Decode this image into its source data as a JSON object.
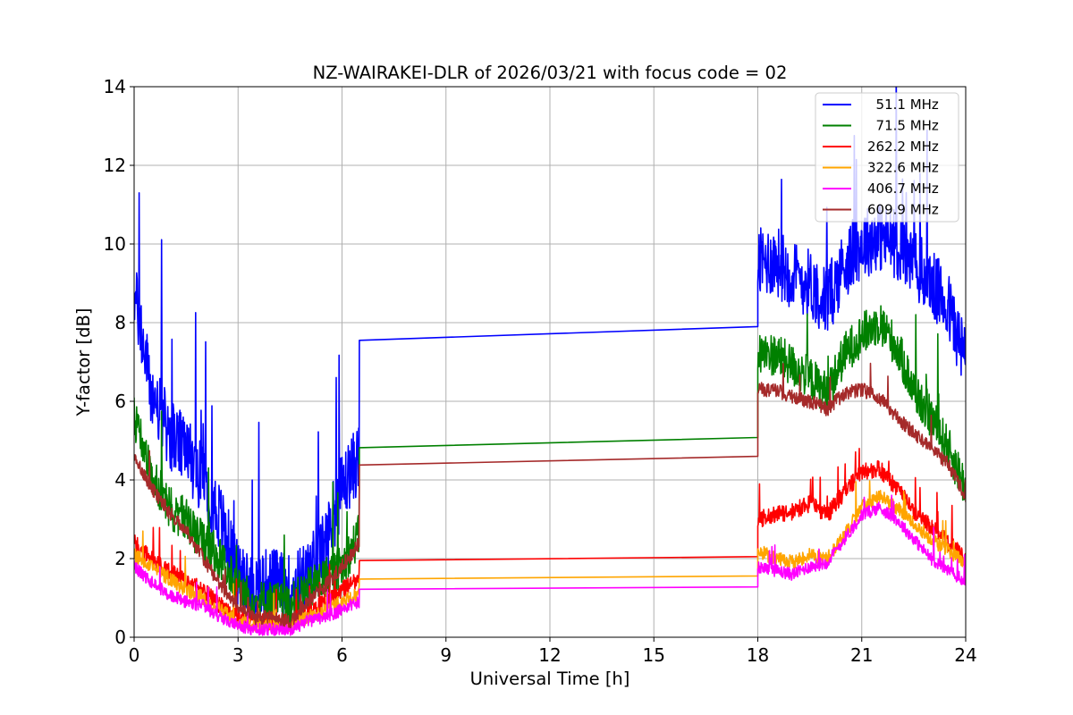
{
  "chart_data": {
    "type": "line",
    "title": "NZ-WAIRAKEI-DLR of 2026/03/21 with focus code = 02",
    "xlabel": "Universal Time [h]",
    "ylabel": "Y-factor [dB]",
    "xlim": [
      0,
      24
    ],
    "ylim": [
      0,
      14
    ],
    "xticks": [
      0,
      3,
      6,
      9,
      12,
      15,
      18,
      21,
      24
    ],
    "xtick_labels": [
      "0",
      "3",
      "6",
      "9",
      "12",
      "15",
      "18",
      "21",
      "24"
    ],
    "yticks": [
      0,
      2,
      4,
      6,
      8,
      10,
      12,
      14
    ],
    "ytick_labels": [
      "0",
      "2",
      "4",
      "6",
      "8",
      "10",
      "12",
      "14"
    ],
    "grid": true,
    "legend_position": "top-right",
    "gap": {
      "start": 6.5,
      "end": 18.0
    },
    "series": [
      {
        "name": "  51.1 MHz",
        "color": "#0000ff",
        "baseline": [
          [
            0,
            8.8
          ],
          [
            0.5,
            6.2
          ],
          [
            1.0,
            5.2
          ],
          [
            1.5,
            4.7
          ],
          [
            2.0,
            4.0
          ],
          [
            2.5,
            3.0
          ],
          [
            3.0,
            1.6
          ],
          [
            3.5,
            1.3
          ],
          [
            4.0,
            1.4
          ],
          [
            4.5,
            1.2
          ],
          [
            5.0,
            1.6
          ],
          [
            5.5,
            2.3
          ],
          [
            6.0,
            3.8
          ],
          [
            6.5,
            4.6
          ],
          [
            18.0,
            9.5
          ],
          [
            18.5,
            9.6
          ],
          [
            19.0,
            9.2
          ],
          [
            19.5,
            9.0
          ],
          [
            20.0,
            8.5
          ],
          [
            20.5,
            9.5
          ],
          [
            21.0,
            10.0
          ],
          [
            21.5,
            10.2
          ],
          [
            22.0,
            10.0
          ],
          [
            22.5,
            9.5
          ],
          [
            23.0,
            9.0
          ],
          [
            23.5,
            8.4
          ],
          [
            24.0,
            7.0
          ]
        ],
        "noise": 0.9,
        "gap_line": [
          7.55,
          7.9
        ]
      },
      {
        "name": "  71.5 MHz",
        "color": "#008000",
        "baseline": [
          [
            0,
            5.6
          ],
          [
            0.5,
            4.2
          ],
          [
            1.0,
            3.3
          ],
          [
            1.5,
            3.0
          ],
          [
            2.0,
            2.4
          ],
          [
            2.5,
            2.0
          ],
          [
            3.0,
            1.2
          ],
          [
            3.5,
            0.9
          ],
          [
            4.0,
            0.9
          ],
          [
            4.5,
            0.8
          ],
          [
            5.0,
            1.2
          ],
          [
            5.5,
            1.5
          ],
          [
            6.0,
            1.8
          ],
          [
            6.5,
            2.6
          ],
          [
            18.0,
            7.2
          ],
          [
            18.5,
            7.2
          ],
          [
            19.0,
            6.9
          ],
          [
            19.5,
            6.6
          ],
          [
            20.0,
            6.2
          ],
          [
            20.5,
            7.2
          ],
          [
            21.0,
            7.7
          ],
          [
            21.5,
            8.0
          ],
          [
            22.0,
            7.4
          ],
          [
            22.5,
            6.3
          ],
          [
            23.0,
            5.6
          ],
          [
            23.5,
            4.8
          ],
          [
            24.0,
            3.8
          ]
        ],
        "noise": 0.55,
        "gap_line": [
          4.82,
          5.08
        ]
      },
      {
        "name": "262.2 MHz",
        "color": "#ff0000",
        "baseline": [
          [
            0,
            2.4
          ],
          [
            0.5,
            2.0
          ],
          [
            1.0,
            1.7
          ],
          [
            1.5,
            1.4
          ],
          [
            2.0,
            1.2
          ],
          [
            2.5,
            0.8
          ],
          [
            3.0,
            0.5
          ],
          [
            3.5,
            0.4
          ],
          [
            4.0,
            0.4
          ],
          [
            4.5,
            0.4
          ],
          [
            5.0,
            0.6
          ],
          [
            5.5,
            0.9
          ],
          [
            6.0,
            1.2
          ],
          [
            6.5,
            1.5
          ],
          [
            18.0,
            3.0
          ],
          [
            18.5,
            3.1
          ],
          [
            19.0,
            3.2
          ],
          [
            19.5,
            3.4
          ],
          [
            20.0,
            3.1
          ],
          [
            20.5,
            3.7
          ],
          [
            21.0,
            4.2
          ],
          [
            21.5,
            4.3
          ],
          [
            22.0,
            3.8
          ],
          [
            22.5,
            3.2
          ],
          [
            23.0,
            2.8
          ],
          [
            23.5,
            2.4
          ],
          [
            24.0,
            2.0
          ]
        ],
        "noise": 0.22,
        "gap_line": [
          1.95,
          2.05
        ]
      },
      {
        "name": "322.6 MHz",
        "color": "#ffa500",
        "baseline": [
          [
            0,
            2.1
          ],
          [
            0.5,
            1.8
          ],
          [
            1.0,
            1.5
          ],
          [
            1.5,
            1.2
          ],
          [
            2.0,
            1.0
          ],
          [
            2.5,
            0.7
          ],
          [
            3.0,
            0.4
          ],
          [
            3.5,
            0.3
          ],
          [
            4.0,
            0.3
          ],
          [
            4.5,
            0.3
          ],
          [
            5.0,
            0.5
          ],
          [
            5.5,
            0.7
          ],
          [
            6.0,
            0.9
          ],
          [
            6.5,
            1.1
          ],
          [
            18.0,
            2.2
          ],
          [
            18.5,
            2.0
          ],
          [
            19.0,
            1.9
          ],
          [
            19.5,
            2.1
          ],
          [
            20.0,
            2.0
          ],
          [
            20.5,
            2.6
          ],
          [
            21.0,
            3.3
          ],
          [
            21.5,
            3.6
          ],
          [
            22.0,
            3.3
          ],
          [
            22.5,
            2.9
          ],
          [
            23.0,
            2.5
          ],
          [
            23.5,
            2.2
          ],
          [
            24.0,
            1.9
          ]
        ],
        "noise": 0.18,
        "gap_line": [
          1.48,
          1.56
        ]
      },
      {
        "name": "406.7 MHz",
        "color": "#ff00ff",
        "baseline": [
          [
            0,
            1.8
          ],
          [
            0.5,
            1.4
          ],
          [
            1.0,
            1.1
          ],
          [
            1.5,
            0.9
          ],
          [
            2.0,
            0.8
          ],
          [
            2.5,
            0.5
          ],
          [
            3.0,
            0.3
          ],
          [
            3.5,
            0.2
          ],
          [
            4.0,
            0.2
          ],
          [
            4.5,
            0.2
          ],
          [
            5.0,
            0.4
          ],
          [
            5.5,
            0.5
          ],
          [
            6.0,
            0.7
          ],
          [
            6.5,
            0.9
          ],
          [
            18.0,
            1.8
          ],
          [
            18.5,
            1.7
          ],
          [
            19.0,
            1.6
          ],
          [
            19.5,
            1.8
          ],
          [
            20.0,
            1.9
          ],
          [
            20.5,
            2.5
          ],
          [
            21.0,
            3.1
          ],
          [
            21.5,
            3.3
          ],
          [
            22.0,
            3.0
          ],
          [
            22.5,
            2.5
          ],
          [
            23.0,
            2.0
          ],
          [
            23.5,
            1.7
          ],
          [
            24.0,
            1.4
          ]
        ],
        "noise": 0.16,
        "gap_line": [
          1.22,
          1.28
        ]
      },
      {
        "name": "609.9 MHz",
        "color": "#a52a2a",
        "baseline": [
          [
            0,
            4.6
          ],
          [
            0.5,
            3.8
          ],
          [
            1.0,
            3.2
          ],
          [
            1.5,
            2.7
          ],
          [
            2.0,
            2.0
          ],
          [
            2.5,
            1.3
          ],
          [
            3.0,
            0.8
          ],
          [
            3.5,
            0.5
          ],
          [
            4.0,
            0.5
          ],
          [
            4.5,
            0.4
          ],
          [
            5.0,
            0.9
          ],
          [
            5.5,
            1.3
          ],
          [
            6.0,
            1.8
          ],
          [
            6.5,
            2.4
          ],
          [
            18.0,
            6.3
          ],
          [
            18.5,
            6.3
          ],
          [
            19.0,
            6.1
          ],
          [
            19.5,
            6.0
          ],
          [
            20.0,
            5.8
          ],
          [
            20.5,
            6.2
          ],
          [
            21.0,
            6.3
          ],
          [
            21.5,
            6.1
          ],
          [
            22.0,
            5.6
          ],
          [
            22.5,
            5.2
          ],
          [
            23.0,
            4.8
          ],
          [
            23.5,
            4.4
          ],
          [
            24.0,
            3.6
          ]
        ],
        "noise": 0.18,
        "gap_line": [
          4.38,
          4.6
        ]
      }
    ]
  }
}
